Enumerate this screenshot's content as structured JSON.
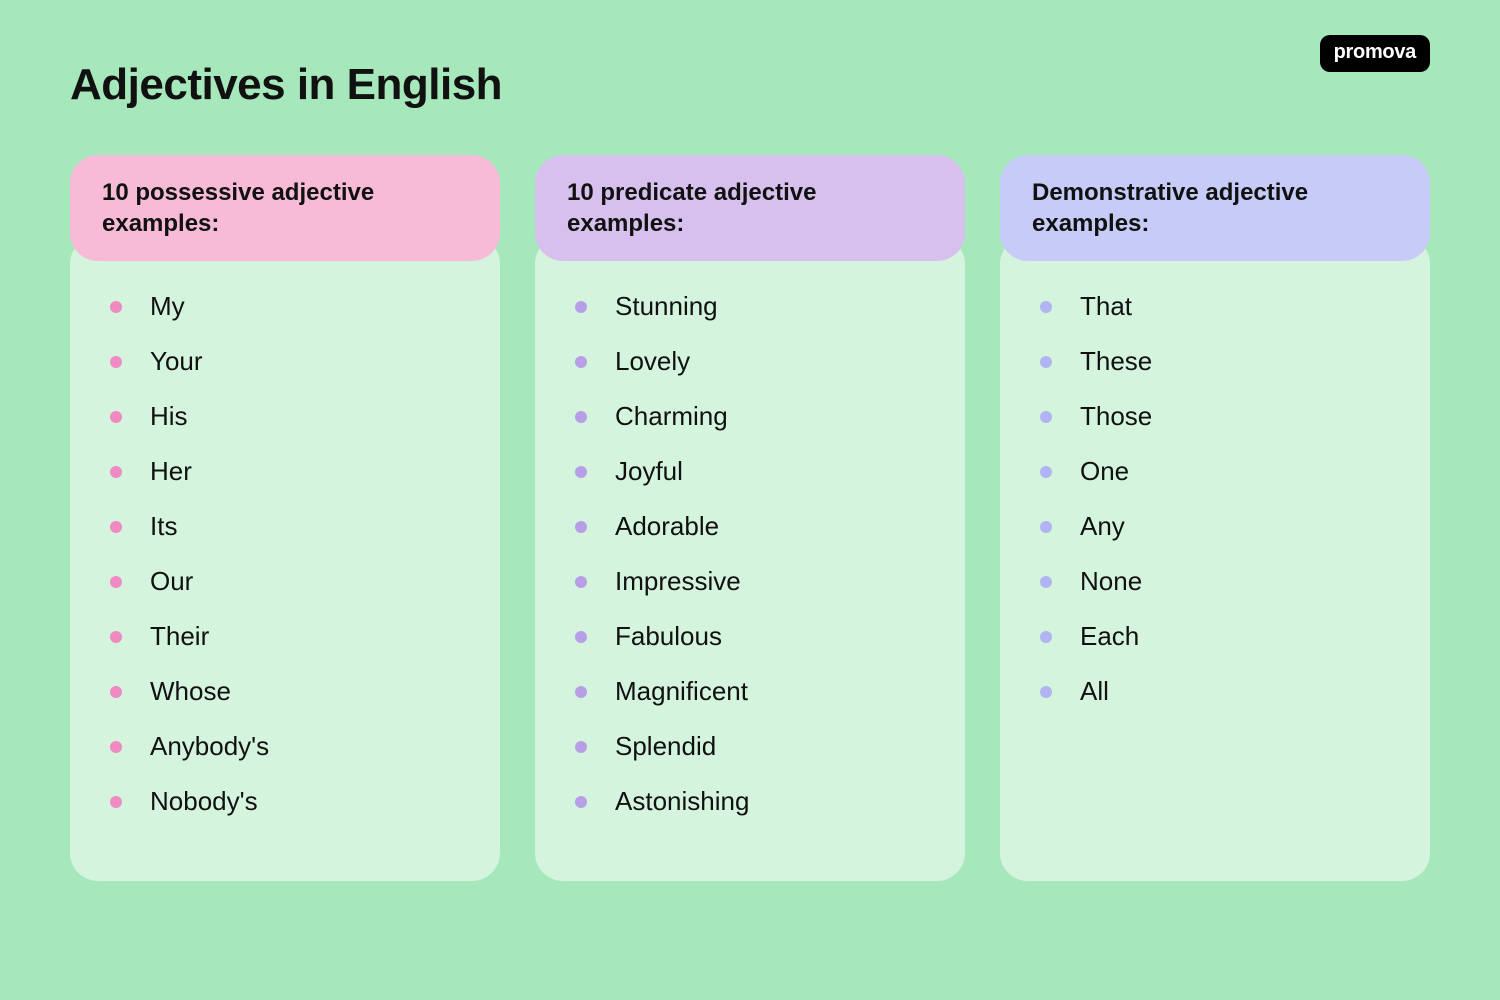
{
  "page": {
    "title": "Adjectives in English",
    "logo_text": "promova",
    "background_color": "#a6e8bb",
    "panel_color": "#d4f4dd",
    "title_fontsize": 44,
    "header_fontsize": 24,
    "item_fontsize": 26,
    "border_radius": 28
  },
  "columns": [
    {
      "title": "10 possessive adjective examples:",
      "header_bg": "#f7bbd8",
      "bullet_color": "#ef8ac2",
      "items": [
        "My",
        "Your",
        "His",
        "Her",
        "Its",
        "Our",
        "Their",
        "Whose",
        "Anybody's",
        "Nobody's"
      ]
    },
    {
      "title": "10 predicate adjective examples:",
      "header_bg": "#d7c0ed",
      "bullet_color": "#b79fe8",
      "items": [
        "Stunning",
        "Lovely",
        "Charming",
        "Joyful",
        "Adorable",
        "Impressive",
        "Fabulous",
        "Magnificent",
        "Splendid",
        "Astonishing"
      ]
    },
    {
      "title": "Demonstrative adjective examples:",
      "header_bg": "#c6cbf7",
      "bullet_color": "#b0b5f2",
      "items": [
        "That",
        "These",
        "Those",
        "One",
        "Any",
        "None",
        "Each",
        "All"
      ]
    }
  ]
}
